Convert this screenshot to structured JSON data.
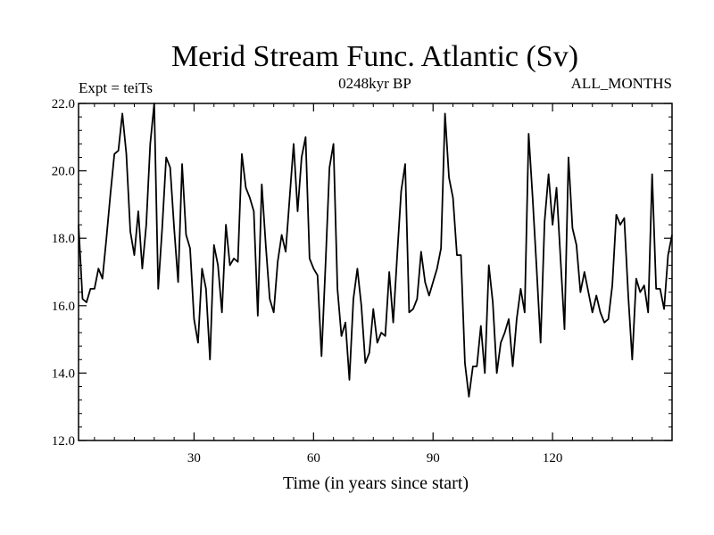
{
  "chart_data": {
    "type": "line",
    "title": "Merid Stream Func. Atlantic (Sv)",
    "subtitle_left": "Expt = teiTs",
    "subtitle_center": "0248kyr BP",
    "subtitle_right": "ALL_MONTHS",
    "xlabel": "Time (in years since start)",
    "ylabel": "",
    "xlim": [
      1,
      150
    ],
    "ylim": [
      12.0,
      22.0
    ],
    "x_ticks": [
      30,
      60,
      90,
      120
    ],
    "x_tick_labels": [
      "30",
      "60",
      "90",
      "120"
    ],
    "y_ticks": [
      12.0,
      14.0,
      16.0,
      18.0,
      20.0,
      22.0
    ],
    "y_tick_labels": [
      "12.0",
      "14.0",
      "16.0",
      "18.0",
      "20.0",
      "22.0"
    ],
    "series": [
      {
        "name": "Merid Stream Func. Atlantic",
        "color": "#000000",
        "x": [
          1,
          2,
          3,
          4,
          5,
          6,
          7,
          8,
          9,
          10,
          11,
          12,
          13,
          14,
          15,
          16,
          17,
          18,
          19,
          20,
          21,
          22,
          23,
          24,
          25,
          26,
          27,
          28,
          29,
          30,
          31,
          32,
          33,
          34,
          35,
          36,
          37,
          38,
          39,
          40,
          41,
          42,
          43,
          44,
          45,
          46,
          47,
          48,
          49,
          50,
          51,
          52,
          53,
          54,
          55,
          56,
          57,
          58,
          59,
          60,
          61,
          62,
          63,
          64,
          65,
          66,
          67,
          68,
          69,
          70,
          71,
          72,
          73,
          74,
          75,
          76,
          77,
          78,
          79,
          80,
          81,
          82,
          83,
          84,
          85,
          86,
          87,
          88,
          89,
          90,
          91,
          92,
          93,
          94,
          95,
          96,
          97,
          98,
          99,
          100,
          101,
          102,
          103,
          104,
          105,
          106,
          107,
          108,
          109,
          110,
          111,
          112,
          113,
          114,
          115,
          116,
          117,
          118,
          119,
          120,
          121,
          122,
          123,
          124,
          125,
          126,
          127,
          128,
          129,
          130,
          131,
          132,
          133,
          134,
          135,
          136,
          137,
          138,
          139,
          140,
          141,
          142,
          143,
          144,
          145,
          146,
          147,
          148,
          149,
          150
        ],
        "values": [
          18.4,
          16.2,
          16.1,
          16.5,
          16.5,
          17.1,
          16.8,
          18.0,
          19.3,
          20.5,
          20.6,
          21.7,
          20.5,
          18.2,
          17.5,
          18.8,
          17.1,
          18.4,
          20.8,
          22.0,
          16.5,
          18.3,
          20.4,
          20.1,
          18.3,
          16.7,
          20.2,
          18.1,
          17.7,
          15.6,
          14.9,
          17.1,
          16.5,
          14.4,
          17.8,
          17.2,
          15.8,
          18.4,
          17.2,
          17.4,
          17.3,
          20.5,
          19.5,
          19.2,
          18.8,
          15.7,
          19.6,
          17.8,
          16.2,
          15.8,
          17.3,
          18.1,
          17.6,
          19.2,
          20.8,
          18.8,
          20.4,
          21.0,
          17.4,
          17.1,
          16.9,
          14.5,
          17.2,
          20.1,
          20.8,
          16.5,
          15.1,
          15.5,
          13.8,
          16.2,
          17.1,
          16.0,
          14.3,
          14.6,
          15.9,
          14.9,
          15.2,
          15.1,
          17.0,
          15.5,
          17.5,
          19.4,
          20.2,
          15.8,
          15.9,
          16.2,
          17.6,
          16.7,
          16.3,
          16.7,
          17.1,
          17.7,
          21.7,
          19.8,
          19.2,
          17.5,
          17.5,
          14.3,
          13.3,
          14.2,
          14.2,
          15.4,
          14.0,
          17.2,
          16.1,
          14.0,
          14.9,
          15.2,
          15.6,
          14.2,
          15.6,
          16.5,
          15.8,
          21.1,
          19.2,
          17.1,
          14.9,
          18.5,
          19.9,
          18.4,
          19.5,
          17.4,
          15.3,
          20.4,
          18.3,
          17.8,
          16.4,
          17.0,
          16.4,
          15.8,
          16.3,
          15.8,
          15.5,
          15.6,
          16.6,
          18.7,
          18.4,
          18.6,
          16.3,
          14.4,
          16.8,
          16.4,
          16.6,
          15.8,
          19.9,
          16.5,
          16.5,
          15.9,
          17.5,
          18.1
        ]
      }
    ]
  }
}
